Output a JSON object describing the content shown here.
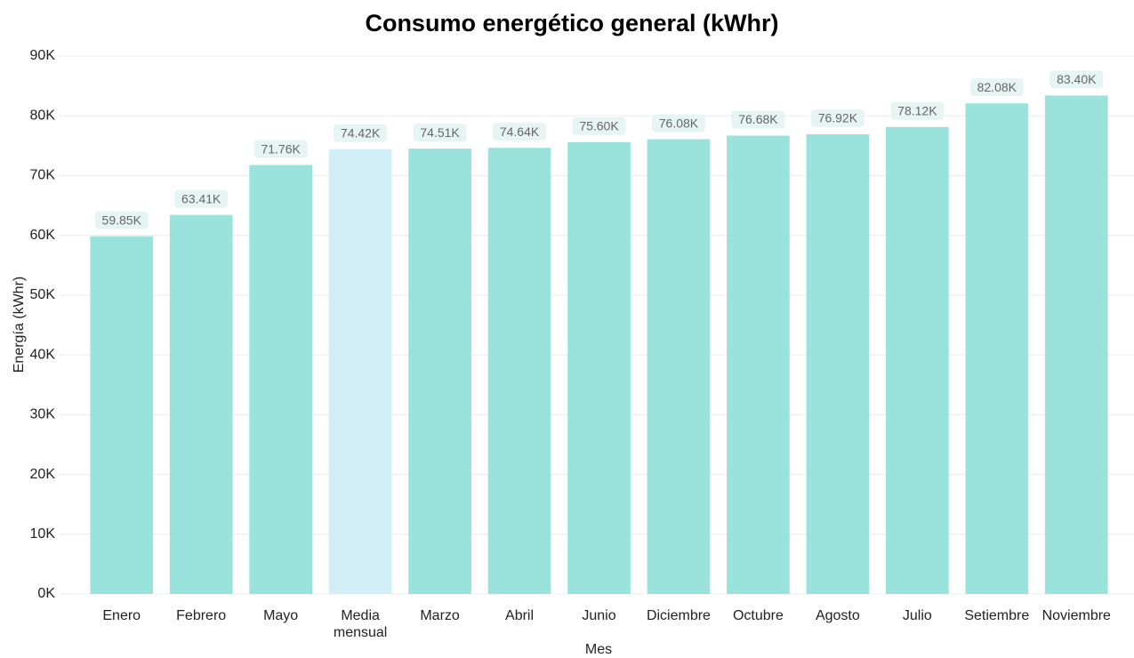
{
  "chart_data": {
    "type": "bar",
    "title": "Consumo energético general (kWhr)",
    "x_label": "Mes",
    "y_label": "Energía (kWhr)",
    "categories": [
      "Enero",
      "Febrero",
      "Mayo",
      "Media mensual",
      "Marzo",
      "Abril",
      "Junio",
      "Diciembre",
      "Octubre",
      "Agosto",
      "Julio",
      "Setiembre",
      "Noviembre"
    ],
    "values": [
      59850,
      63410,
      71760,
      74420,
      74510,
      74640,
      75600,
      76080,
      76680,
      76920,
      78120,
      82080,
      83400
    ],
    "value_labels": [
      "59.85K",
      "63.41K",
      "71.76K",
      "74.42K",
      "74.51K",
      "74.64K",
      "75.60K",
      "76.08K",
      "76.68K",
      "76.92K",
      "78.12K",
      "82.08K",
      "83.40K"
    ],
    "colors": [
      "#99e3dc",
      "#99e3dc",
      "#99e3dc",
      "#d2eef7",
      "#99e3dc",
      "#99e3dc",
      "#99e3dc",
      "#99e3dc",
      "#99e3dc",
      "#99e3dc",
      "#99e3dc",
      "#99e3dc",
      "#99e3dc"
    ],
    "ylim": [
      0,
      90000
    ],
    "yticks": [
      {
        "value": 0,
        "label": "0K"
      },
      {
        "value": 10000,
        "label": "10K"
      },
      {
        "value": 20000,
        "label": "20K"
      },
      {
        "value": 30000,
        "label": "30K"
      },
      {
        "value": 40000,
        "label": "40K"
      },
      {
        "value": 50000,
        "label": "50K"
      },
      {
        "value": 60000,
        "label": "60K"
      },
      {
        "value": 70000,
        "label": "70K"
      },
      {
        "value": 80000,
        "label": "80K"
      },
      {
        "value": 90000,
        "label": "90K"
      }
    ],
    "grid": true
  }
}
